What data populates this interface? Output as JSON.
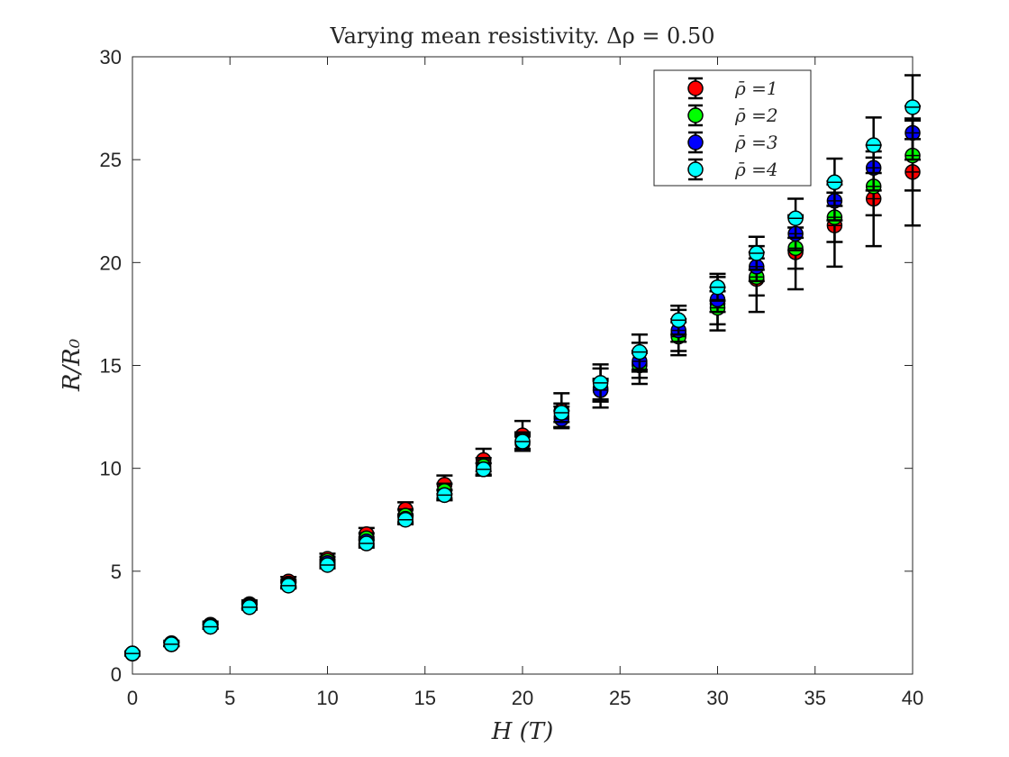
{
  "chart_data": {
    "type": "scatter",
    "title": "Varying mean resistivity. Δρ = 0.50",
    "xlabel": "H (T)",
    "ylabel": "R/R₀",
    "xlim": [
      0,
      40
    ],
    "ylim": [
      0,
      30
    ],
    "xticks": [
      0,
      5,
      10,
      15,
      20,
      25,
      30,
      35,
      40
    ],
    "yticks": [
      0,
      5,
      10,
      15,
      20,
      25,
      30
    ],
    "xtick_labels": [
      "0",
      "5",
      "10",
      "15",
      "20",
      "25",
      "30",
      "35",
      "40"
    ],
    "ytick_labels": [
      "0",
      "5",
      "10",
      "15",
      "20",
      "25",
      "30"
    ],
    "grid": false,
    "legend_position": "top-right",
    "x": [
      0,
      2,
      4,
      6,
      8,
      10,
      12,
      14,
      16,
      18,
      20,
      22,
      24,
      26,
      28,
      30,
      32,
      34,
      36,
      38,
      40
    ],
    "series": [
      {
        "name": "ρ̄ =1",
        "color": "#ff0000",
        "values": [
          1.0,
          1.5,
          2.4,
          3.4,
          4.5,
          5.6,
          6.8,
          8.0,
          9.2,
          10.4,
          11.6,
          12.8,
          13.9,
          15.1,
          16.6,
          18.0,
          19.2,
          20.5,
          21.8,
          23.1,
          24.4
        ],
        "errors": [
          0.1,
          0.12,
          0.15,
          0.18,
          0.22,
          0.25,
          0.3,
          0.35,
          0.45,
          0.55,
          0.7,
          0.85,
          0.95,
          1.0,
          1.1,
          1.3,
          1.6,
          1.8,
          2.0,
          2.3,
          2.6
        ]
      },
      {
        "name": "ρ̄ =2",
        "color": "#00ff00",
        "values": [
          1.0,
          1.45,
          2.35,
          3.35,
          4.4,
          5.5,
          6.6,
          7.7,
          8.9,
          10.1,
          11.3,
          12.5,
          13.8,
          15.0,
          16.4,
          17.8,
          19.3,
          20.7,
          22.2,
          23.7,
          25.2
        ],
        "errors": [
          0.08,
          0.1,
          0.12,
          0.15,
          0.18,
          0.2,
          0.25,
          0.3,
          0.35,
          0.4,
          0.45,
          0.5,
          0.55,
          0.6,
          0.7,
          0.8,
          0.9,
          1.0,
          1.2,
          1.4,
          1.7
        ]
      },
      {
        "name": "ρ̄ =3",
        "color": "#0000ff",
        "values": [
          1.0,
          1.45,
          2.3,
          3.3,
          4.35,
          5.4,
          6.45,
          7.55,
          8.7,
          9.95,
          11.2,
          12.4,
          13.8,
          15.2,
          16.7,
          18.2,
          19.8,
          21.4,
          23.0,
          24.6,
          26.3
        ],
        "errors": [
          0.06,
          0.08,
          0.1,
          0.12,
          0.14,
          0.16,
          0.2,
          0.22,
          0.25,
          0.3,
          0.35,
          0.4,
          0.45,
          0.5,
          0.55,
          0.6,
          0.7,
          0.8,
          0.95,
          1.1,
          1.3
        ]
      },
      {
        "name": "ρ̄ =4",
        "color": "#00ffff",
        "values": [
          1.0,
          1.45,
          2.3,
          3.25,
          4.3,
          5.3,
          6.35,
          7.5,
          8.7,
          9.95,
          11.3,
          12.7,
          14.15,
          15.65,
          17.2,
          18.8,
          20.45,
          22.15,
          23.9,
          25.7,
          27.55
        ],
        "errors": [
          0.06,
          0.08,
          0.1,
          0.12,
          0.14,
          0.16,
          0.2,
          0.22,
          0.25,
          0.3,
          0.35,
          0.45,
          0.9,
          0.85,
          0.7,
          0.65,
          0.8,
          0.95,
          1.15,
          1.35,
          1.55
        ]
      }
    ]
  }
}
